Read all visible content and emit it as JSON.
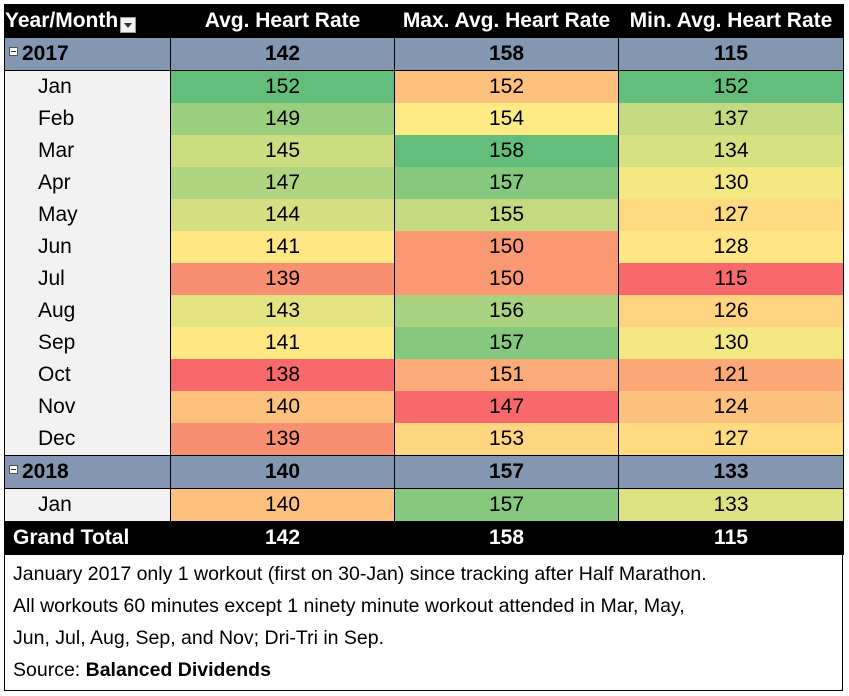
{
  "header": {
    "col0": "Year/Month",
    "col1": "Avg. Heart Rate",
    "col2": "Max. Avg. Heart Rate",
    "col3": "Min. Avg. Heart Rate"
  },
  "icons": {
    "filter": "dropdown-filter-icon",
    "collapse": "minus-collapse-icon"
  },
  "colors": {
    "header_bg": "#000000",
    "year_row_bg": "#8497b0",
    "month_label_bg": "#f2f2f2",
    "scale_low": "#f8696b",
    "scale_mid": "#ffeb84",
    "scale_high": "#63be7b"
  },
  "years": [
    {
      "label": "2017",
      "avg": "142",
      "max": "158",
      "min": "115",
      "months": [
        {
          "label": "Jan",
          "avg": "152",
          "max": "152",
          "min": "152",
          "avg_color": "#63be7b",
          "max_color": "#fdc07d",
          "min_color": "#63be7b"
        },
        {
          "label": "Feb",
          "avg": "149",
          "max": "154",
          "min": "137",
          "avg_color": "#9bcf7e",
          "max_color": "#ffeb84",
          "min_color": "#c4da80"
        },
        {
          "label": "Mar",
          "avg": "145",
          "max": "158",
          "min": "134",
          "avg_color": "#cbdc81",
          "max_color": "#63be7b",
          "min_color": "#d6e181"
        },
        {
          "label": "Apr",
          "avg": "147",
          "max": "157",
          "min": "130",
          "avg_color": "#b0d580",
          "max_color": "#86c97e",
          "min_color": "#f4e883"
        },
        {
          "label": "May",
          "avg": "144",
          "max": "155",
          "min": "127",
          "avg_color": "#d7df82",
          "max_color": "#c4da80",
          "min_color": "#fedb81"
        },
        {
          "label": "Jun",
          "avg": "141",
          "max": "150",
          "min": "128",
          "avg_color": "#ffe883",
          "max_color": "#f99872",
          "min_color": "#ffe583"
        },
        {
          "label": "Jul",
          "avg": "139",
          "max": "150",
          "min": "115",
          "avg_color": "#f98f71",
          "max_color": "#f99872",
          "min_color": "#f8696b"
        },
        {
          "label": "Aug",
          "avg": "143",
          "max": "156",
          "min": "126",
          "avg_color": "#e4e382",
          "max_color": "#a8d27f",
          "min_color": "#fed480"
        },
        {
          "label": "Sep",
          "avg": "141",
          "max": "157",
          "min": "130",
          "avg_color": "#ffe883",
          "max_color": "#86c97e",
          "min_color": "#f4e883"
        },
        {
          "label": "Oct",
          "avg": "138",
          "max": "151",
          "min": "121",
          "avg_color": "#f8696b",
          "max_color": "#fbab77",
          "min_color": "#fba777"
        },
        {
          "label": "Nov",
          "avg": "140",
          "max": "147",
          "min": "124",
          "avg_color": "#fdc07d",
          "max_color": "#f8696b",
          "min_color": "#fcc27d"
        },
        {
          "label": "Dec",
          "avg": "139",
          "max": "153",
          "min": "127",
          "avg_color": "#f98f71",
          "max_color": "#fed680",
          "min_color": "#fedb81"
        }
      ]
    },
    {
      "label": "2018",
      "avg": "140",
      "max": "157",
      "min": "133",
      "months": [
        {
          "label": "Jan",
          "avg": "140",
          "max": "157",
          "min": "133",
          "avg_color": "#fdc07d",
          "max_color": "#86c97e",
          "min_color": "#dee182"
        }
      ]
    }
  ],
  "grand_total": {
    "label": "Grand Total",
    "avg": "142",
    "max": "158",
    "min": "115"
  },
  "notes": {
    "line1": "January 2017 only 1 workout (first on 30-Jan) since tracking after Half Marathon.",
    "line2": "All workouts 60 minutes except 1 ninety minute workout attended in Mar, May,",
    "line3": "Jun, Jul, Aug, Sep, and Nov; Dri-Tri in Sep.",
    "source_prefix": "Source: ",
    "source_name": "Balanced Dividends"
  }
}
